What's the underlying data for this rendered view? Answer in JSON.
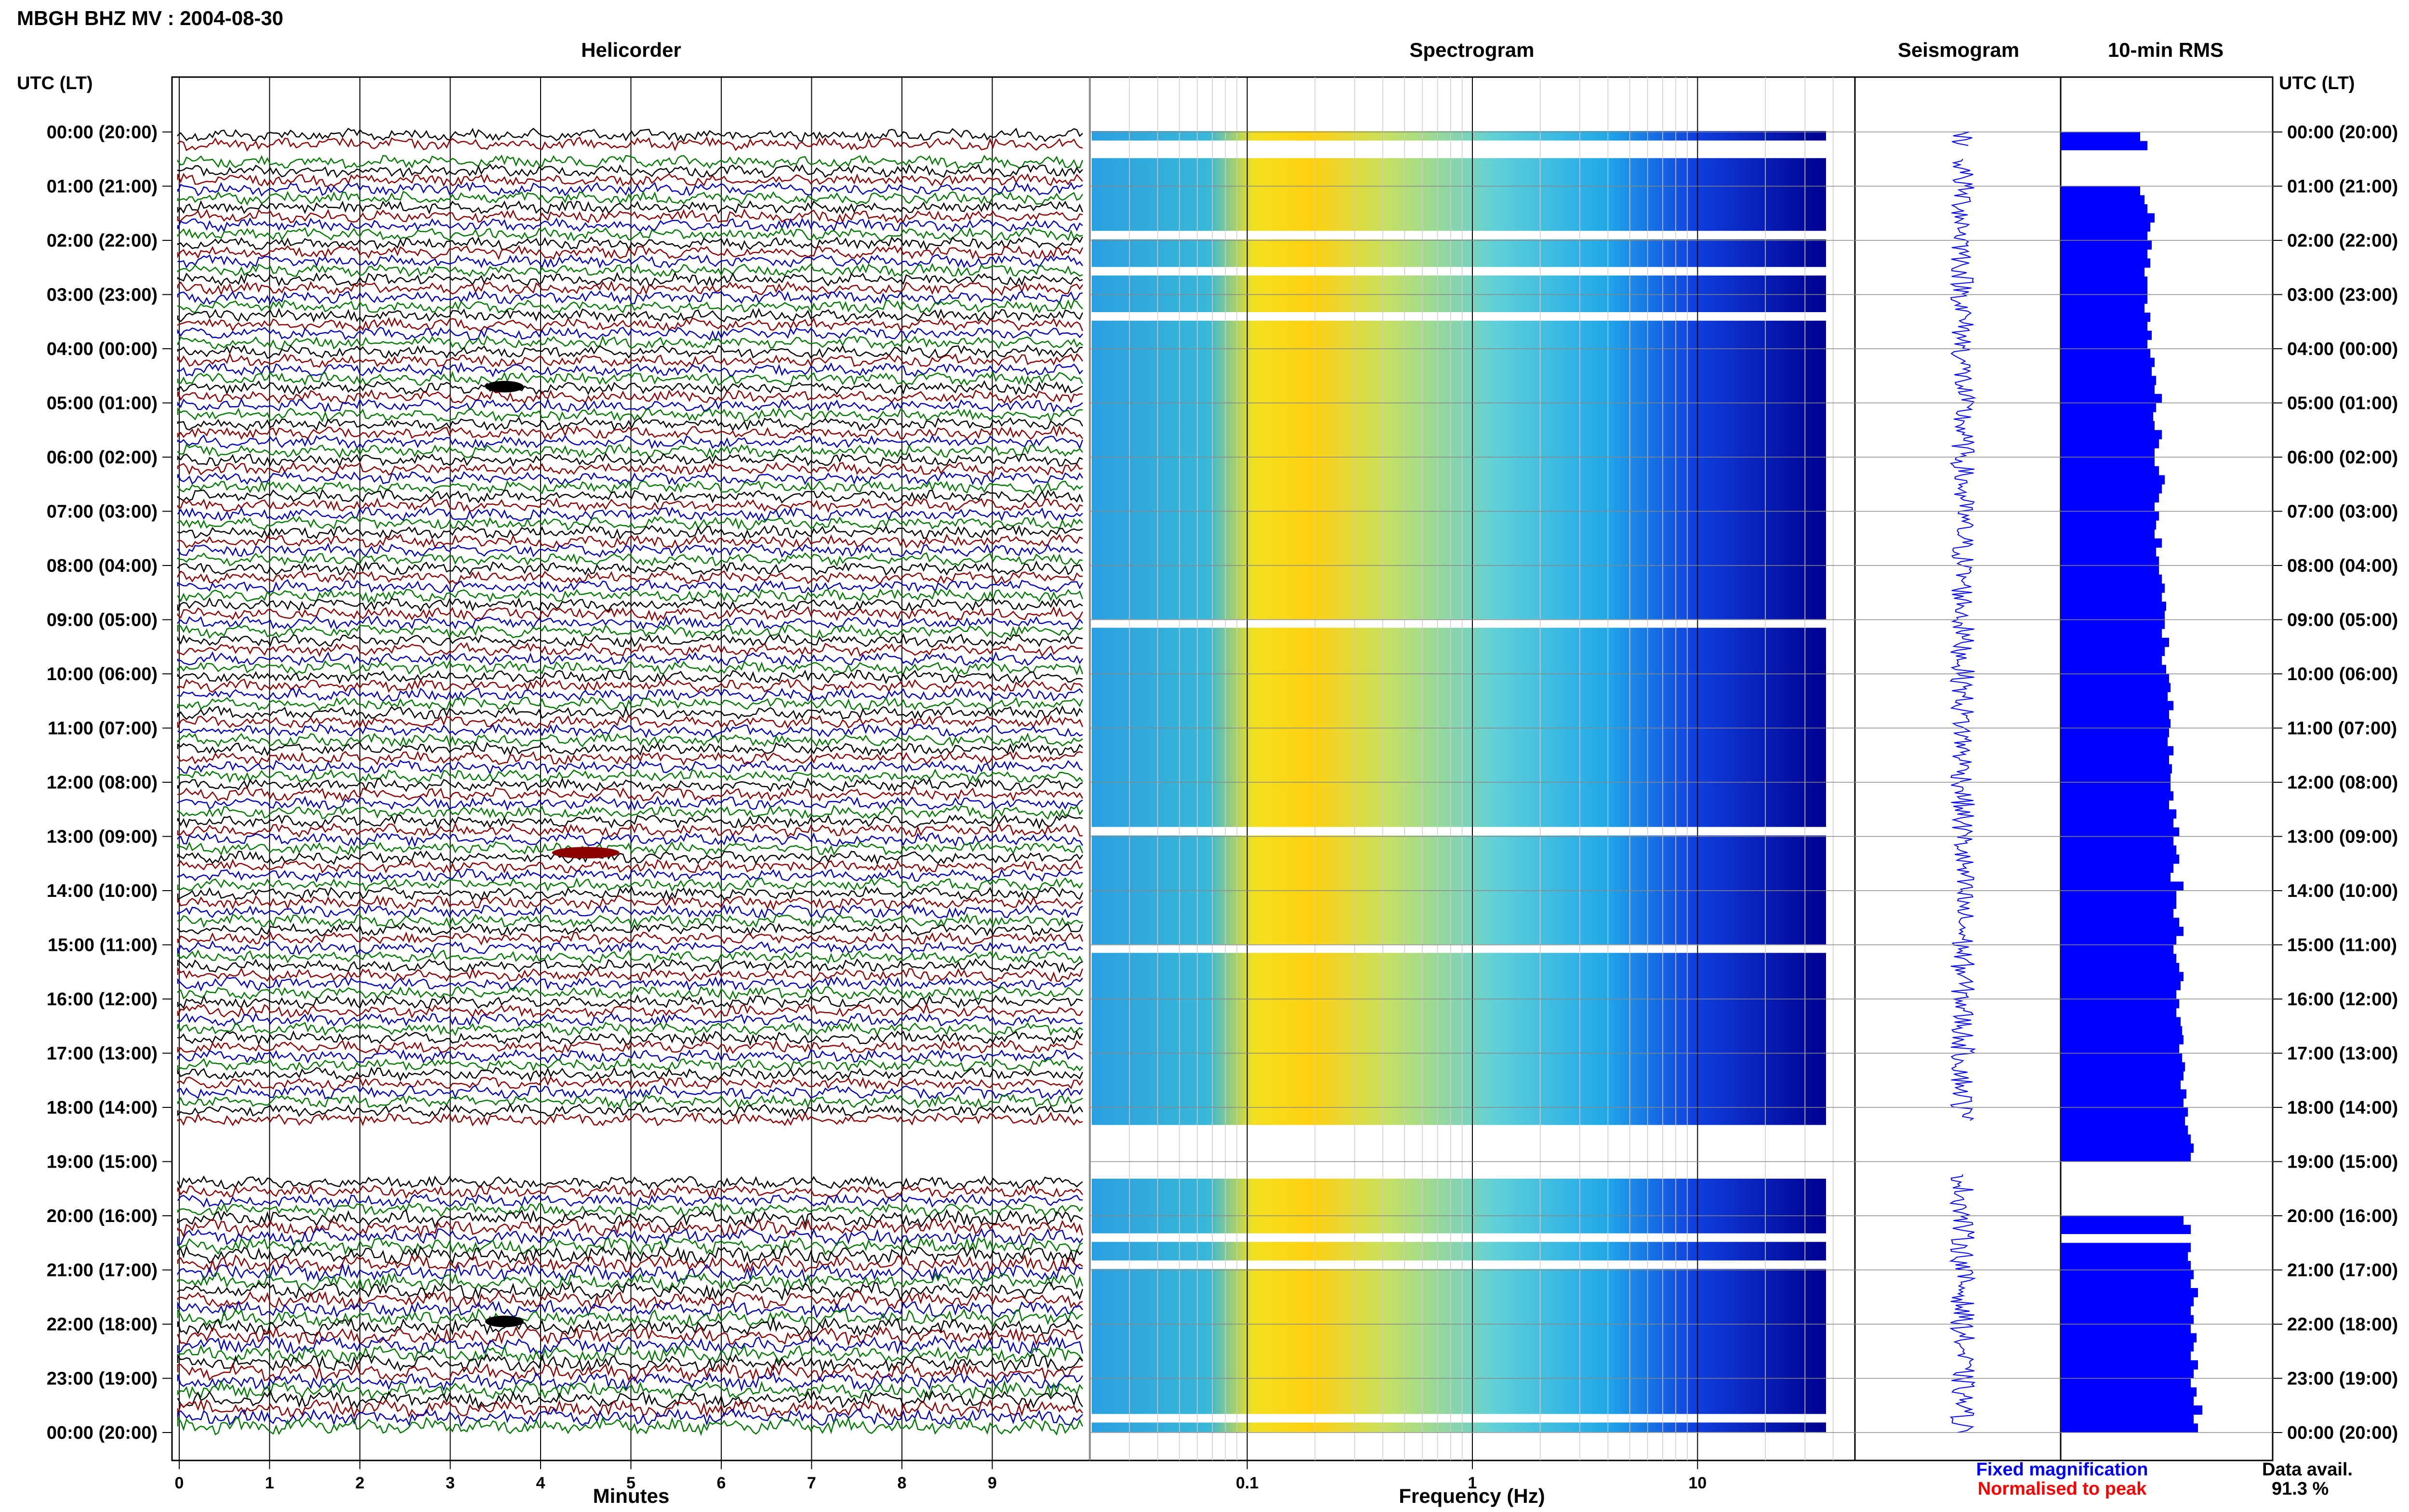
{
  "title": "MBGH BHZ MV : 2004-08-30",
  "panels": {
    "helicorder": "Helicorder",
    "spectrogram": "Spectrogram",
    "seismogram": "Seismogram",
    "rms": "10-min RMS"
  },
  "axis_header_left": "UTC (LT)",
  "axis_header_right": "UTC (LT)",
  "time_labels": [
    "00:00 (20:00)",
    "01:00 (21:00)",
    "02:00 (22:00)",
    "03:00 (23:00)",
    "04:00 (00:00)",
    "05:00 (01:00)",
    "06:00 (02:00)",
    "07:00 (03:00)",
    "08:00 (04:00)",
    "09:00 (05:00)",
    "10:00 (06:00)",
    "11:00 (07:00)",
    "12:00 (08:00)",
    "13:00 (09:00)",
    "14:00 (10:00)",
    "15:00 (11:00)",
    "16:00 (12:00)",
    "17:00 (13:00)",
    "18:00 (14:00)",
    "19:00 (15:00)",
    "20:00 (16:00)",
    "21:00 (17:00)",
    "22:00 (18:00)",
    "23:00 (19:00)",
    "00:00 (20:00)"
  ],
  "minutes_axis": {
    "label": "Minutes",
    "ticks": [
      "0",
      "1",
      "2",
      "3",
      "4",
      "5",
      "6",
      "7",
      "8",
      "9"
    ]
  },
  "frequency_axis": {
    "label": "Frequency (Hz)",
    "ticks": [
      "0.1",
      "1",
      "10"
    ]
  },
  "legend": {
    "fixed": "Fixed magnification",
    "normalised": "Normalised to peak"
  },
  "colors": {
    "fixed": "#0000ff",
    "normalised": "#ff0000",
    "trace_cycle": [
      "#000000",
      "#8b0000",
      "#0000b4",
      "#007800"
    ]
  },
  "data_avail": {
    "label": "Data avail.",
    "value": "91.3 %"
  },
  "chart_data": [
    {
      "type": "line",
      "name": "Helicorder",
      "x_unit": "minutes",
      "xlim": [
        0,
        10
      ],
      "y_unit": "hour of day (UTC)",
      "ylim": [
        0,
        24
      ],
      "data_gaps_hours": [
        [
          18.25,
          19.25
        ],
        [
          0.25,
          0.5
        ]
      ],
      "events_minute_hour": [
        [
          3.6,
          4.7
        ],
        [
          4.5,
          13.3
        ],
        [
          3.6,
          21.95
        ]
      ]
    },
    {
      "type": "heatmap",
      "name": "Spectrogram",
      "x_scale": "log",
      "x_unit": "Hz",
      "xlim": [
        0.02,
        50
      ],
      "ylim": [
        0,
        24
      ],
      "peak_band_hz": [
        0.13,
        0.3
      ]
    },
    {
      "type": "line",
      "name": "Seismogram",
      "ylim": [
        0,
        24
      ]
    },
    {
      "type": "bar",
      "name": "10-min RMS",
      "orientation": "horizontal",
      "ylim": [
        0,
        24
      ],
      "values": [
        0.55,
        0.6,
        0.0,
        0.0,
        0.0,
        0.0,
        0.55,
        0.58,
        0.6,
        0.65,
        0.62,
        0.6,
        0.63,
        0.6,
        0.62,
        0.58,
        0.6,
        0.6,
        0.6,
        0.58,
        0.62,
        0.6,
        0.63,
        0.6,
        0.62,
        0.65,
        0.63,
        0.66,
        0.65,
        0.7,
        0.66,
        0.64,
        0.65,
        0.7,
        0.68,
        0.65,
        0.65,
        0.68,
        0.72,
        0.7,
        0.68,
        0.65,
        0.68,
        0.66,
        0.65,
        0.7,
        0.66,
        0.68,
        0.68,
        0.7,
        0.72,
        0.7,
        0.73,
        0.72,
        0.72,
        0.7,
        0.75,
        0.72,
        0.7,
        0.73,
        0.75,
        0.76,
        0.74,
        0.78,
        0.75,
        0.76,
        0.75,
        0.74,
        0.78,
        0.75,
        0.77,
        0.76,
        0.76,
        0.78,
        0.75,
        0.8,
        0.78,
        0.82,
        0.78,
        0.8,
        0.82,
        0.78,
        0.76,
        0.85,
        0.8,
        0.8,
        0.78,
        0.82,
        0.85,
        0.8,
        0.78,
        0.8,
        0.82,
        0.85,
        0.83,
        0.8,
        0.82,
        0.8,
        0.83,
        0.84,
        0.85,
        0.82,
        0.84,
        0.86,
        0.85,
        0.83,
        0.87,
        0.85,
        0.88,
        0.86,
        0.88,
        0.9,
        0.92,
        0.9,
        0.0,
        0.0,
        0.0,
        0.0,
        0.0,
        0.0,
        0.85,
        0.9,
        0.0,
        0.9,
        0.88,
        0.9,
        0.92,
        0.9,
        0.95,
        0.92,
        0.9,
        0.92,
        0.9,
        0.94,
        0.92,
        0.9,
        0.95,
        0.92,
        0.9,
        0.94,
        0.92,
        0.98,
        0.92,
        0.95
      ]
    }
  ]
}
